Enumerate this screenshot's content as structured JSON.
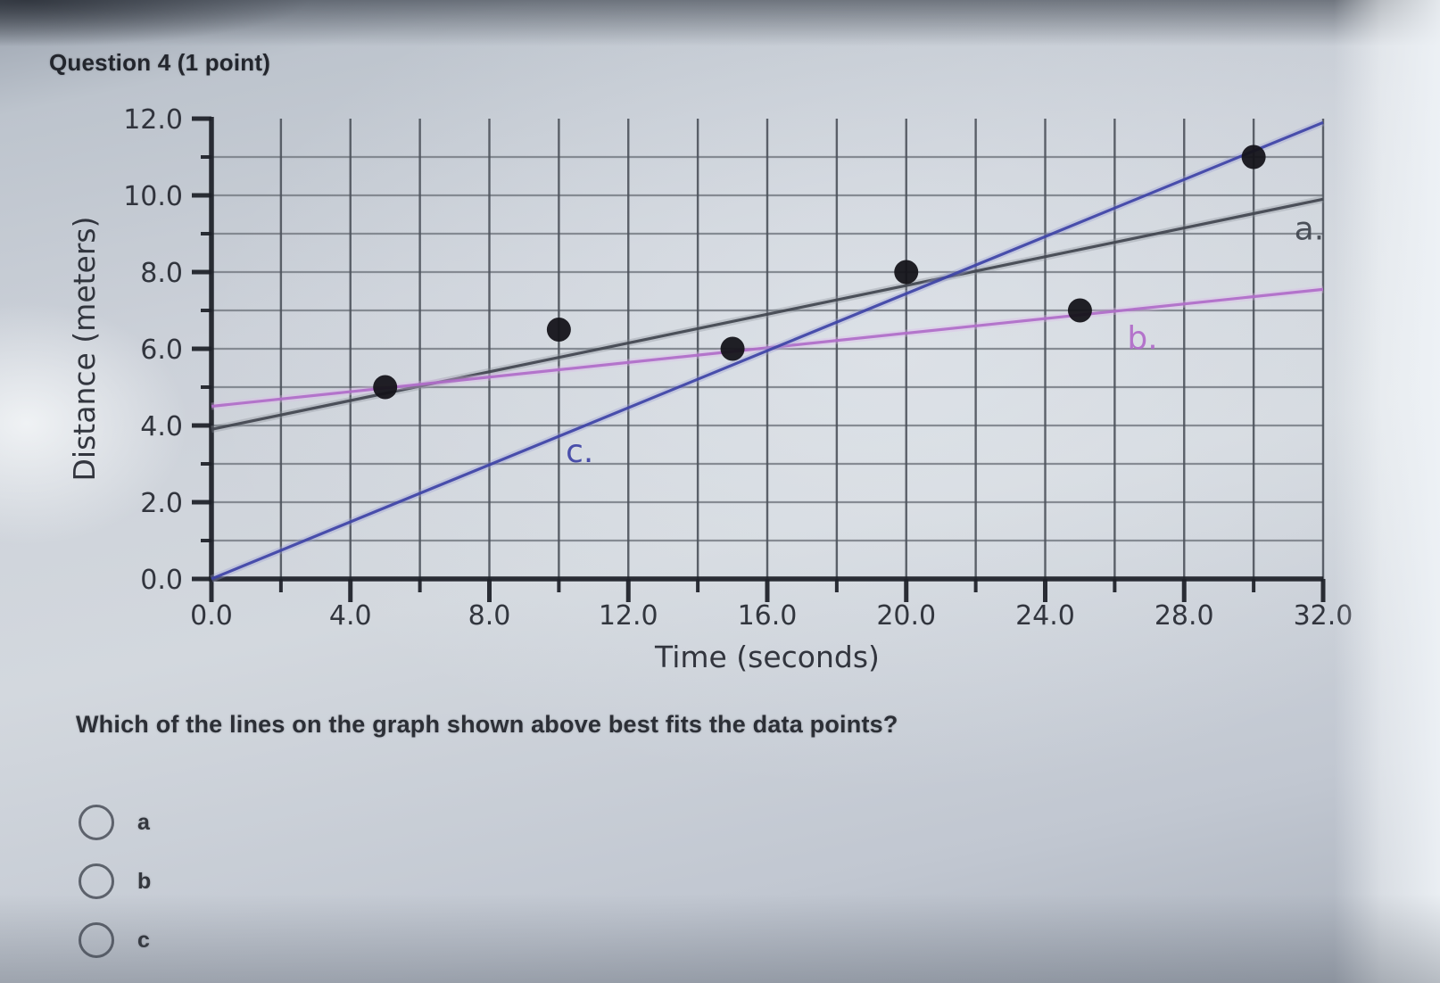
{
  "page": {
    "title": "Question 4 (1 point)",
    "question": "Which of the lines on the graph shown above best fits the data points?",
    "options": [
      {
        "label": "a"
      },
      {
        "label": "b"
      },
      {
        "label": "c"
      }
    ]
  },
  "chart_data": {
    "type": "scatter",
    "xlabel": "Time (seconds)",
    "ylabel": "Distance (meters)",
    "xlim": [
      0,
      32
    ],
    "ylim": [
      0,
      12
    ],
    "x_major_ticks": [
      0,
      4,
      8,
      12,
      16,
      20,
      24,
      28,
      32
    ],
    "x_tick_labels": [
      "0.0",
      "4.0",
      "8.0",
      "12.0",
      "16.0",
      "20.0",
      "24.0",
      "28.0",
      "32.0"
    ],
    "x_minor_step": 2,
    "y_major_ticks": [
      0,
      2,
      4,
      6,
      8,
      10,
      12
    ],
    "y_tick_labels": [
      "0.0",
      "2.0",
      "4.0",
      "6.0",
      "8.0",
      "10.0",
      "12.0"
    ],
    "y_minor_step": 1,
    "grid": {
      "x_step": 2,
      "y_step": 1,
      "h_color": "#7a7f88",
      "v_color": "#4d525b"
    },
    "axis_color": "#20232a",
    "text_color": "#262931",
    "point_color": "#15141a",
    "points": [
      [
        5,
        5.0
      ],
      [
        10,
        6.5
      ],
      [
        15,
        6.0
      ],
      [
        20,
        8.0
      ],
      [
        25,
        7.0
      ],
      [
        30,
        11.0
      ]
    ],
    "lines": [
      {
        "name": "a",
        "label": "a.",
        "color": "#41454f",
        "halo": "#8d919a",
        "start": [
          0,
          3.9
        ],
        "end": [
          32,
          9.9
        ],
        "label_at": [
          31.6,
          9.15
        ]
      },
      {
        "name": "b",
        "label": "b.",
        "color": "#b06cc9",
        "halo": "#ddb6ec",
        "start": [
          0,
          4.5
        ],
        "end": [
          32,
          7.55
        ],
        "label_at": [
          26.8,
          6.3
        ]
      },
      {
        "name": "c",
        "label": "c.",
        "color": "#3e43a6",
        "halo": "#9a9dd4",
        "start": [
          0,
          0.0
        ],
        "end": [
          32,
          11.9
        ],
        "label_at": [
          10.6,
          3.35
        ]
      }
    ]
  }
}
